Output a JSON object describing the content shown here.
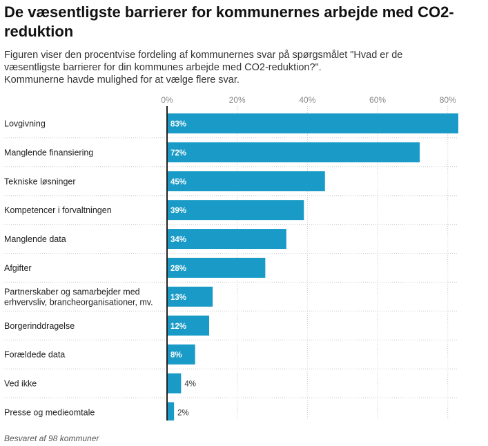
{
  "header": {
    "title": "De væsentligste barrierer for kommunernes arbejde med CO2-reduktion",
    "subtitle_lines": [
      "Figuren viser den procentvise fordeling af kommunernes svar på spørgsmålet \"Hvad er de",
      "væsentligste barrierer for din kommunes arbejde med CO2-reduktion?\".",
      "Kommunerne havde mulighed for at vælge flere svar."
    ]
  },
  "footer": {
    "note": "Besvaret af 98 kommuner"
  },
  "colors": {
    "bar": "#1a9bc7",
    "grid": "#cccccc",
    "axis": "#222222"
  },
  "chart_data": {
    "type": "bar",
    "orientation": "horizontal",
    "title": "De væsentligste barrierer for kommunernes arbejde med CO2-reduktion",
    "xlabel": "",
    "ylabel": "",
    "xlim": [
      0,
      83
    ],
    "ticks": [
      0,
      20,
      40,
      60,
      80
    ],
    "tick_labels": [
      "0%",
      "20%",
      "40%",
      "60%",
      "80%"
    ],
    "grid": true,
    "categories": [
      [
        "Lovgivning"
      ],
      [
        "Manglende finansiering"
      ],
      [
        "Tekniske løsninger"
      ],
      [
        "Kompetencer i forvaltningen"
      ],
      [
        "Manglende data"
      ],
      [
        "Afgifter"
      ],
      [
        "Partnerskaber og samarbejder med",
        "erhvervsliv, brancheorganisationer, mv."
      ],
      [
        "Borgerinddragelse"
      ],
      [
        "Forældede data"
      ],
      [
        "Ved ikke"
      ],
      [
        "Presse og medieomtale"
      ]
    ],
    "values": [
      83,
      72,
      45,
      39,
      34,
      28,
      13,
      12,
      8,
      4,
      2
    ],
    "value_labels": [
      "83%",
      "72%",
      "45%",
      "39%",
      "34%",
      "28%",
      "13%",
      "12%",
      "8%",
      "4%",
      "2%"
    ]
  }
}
